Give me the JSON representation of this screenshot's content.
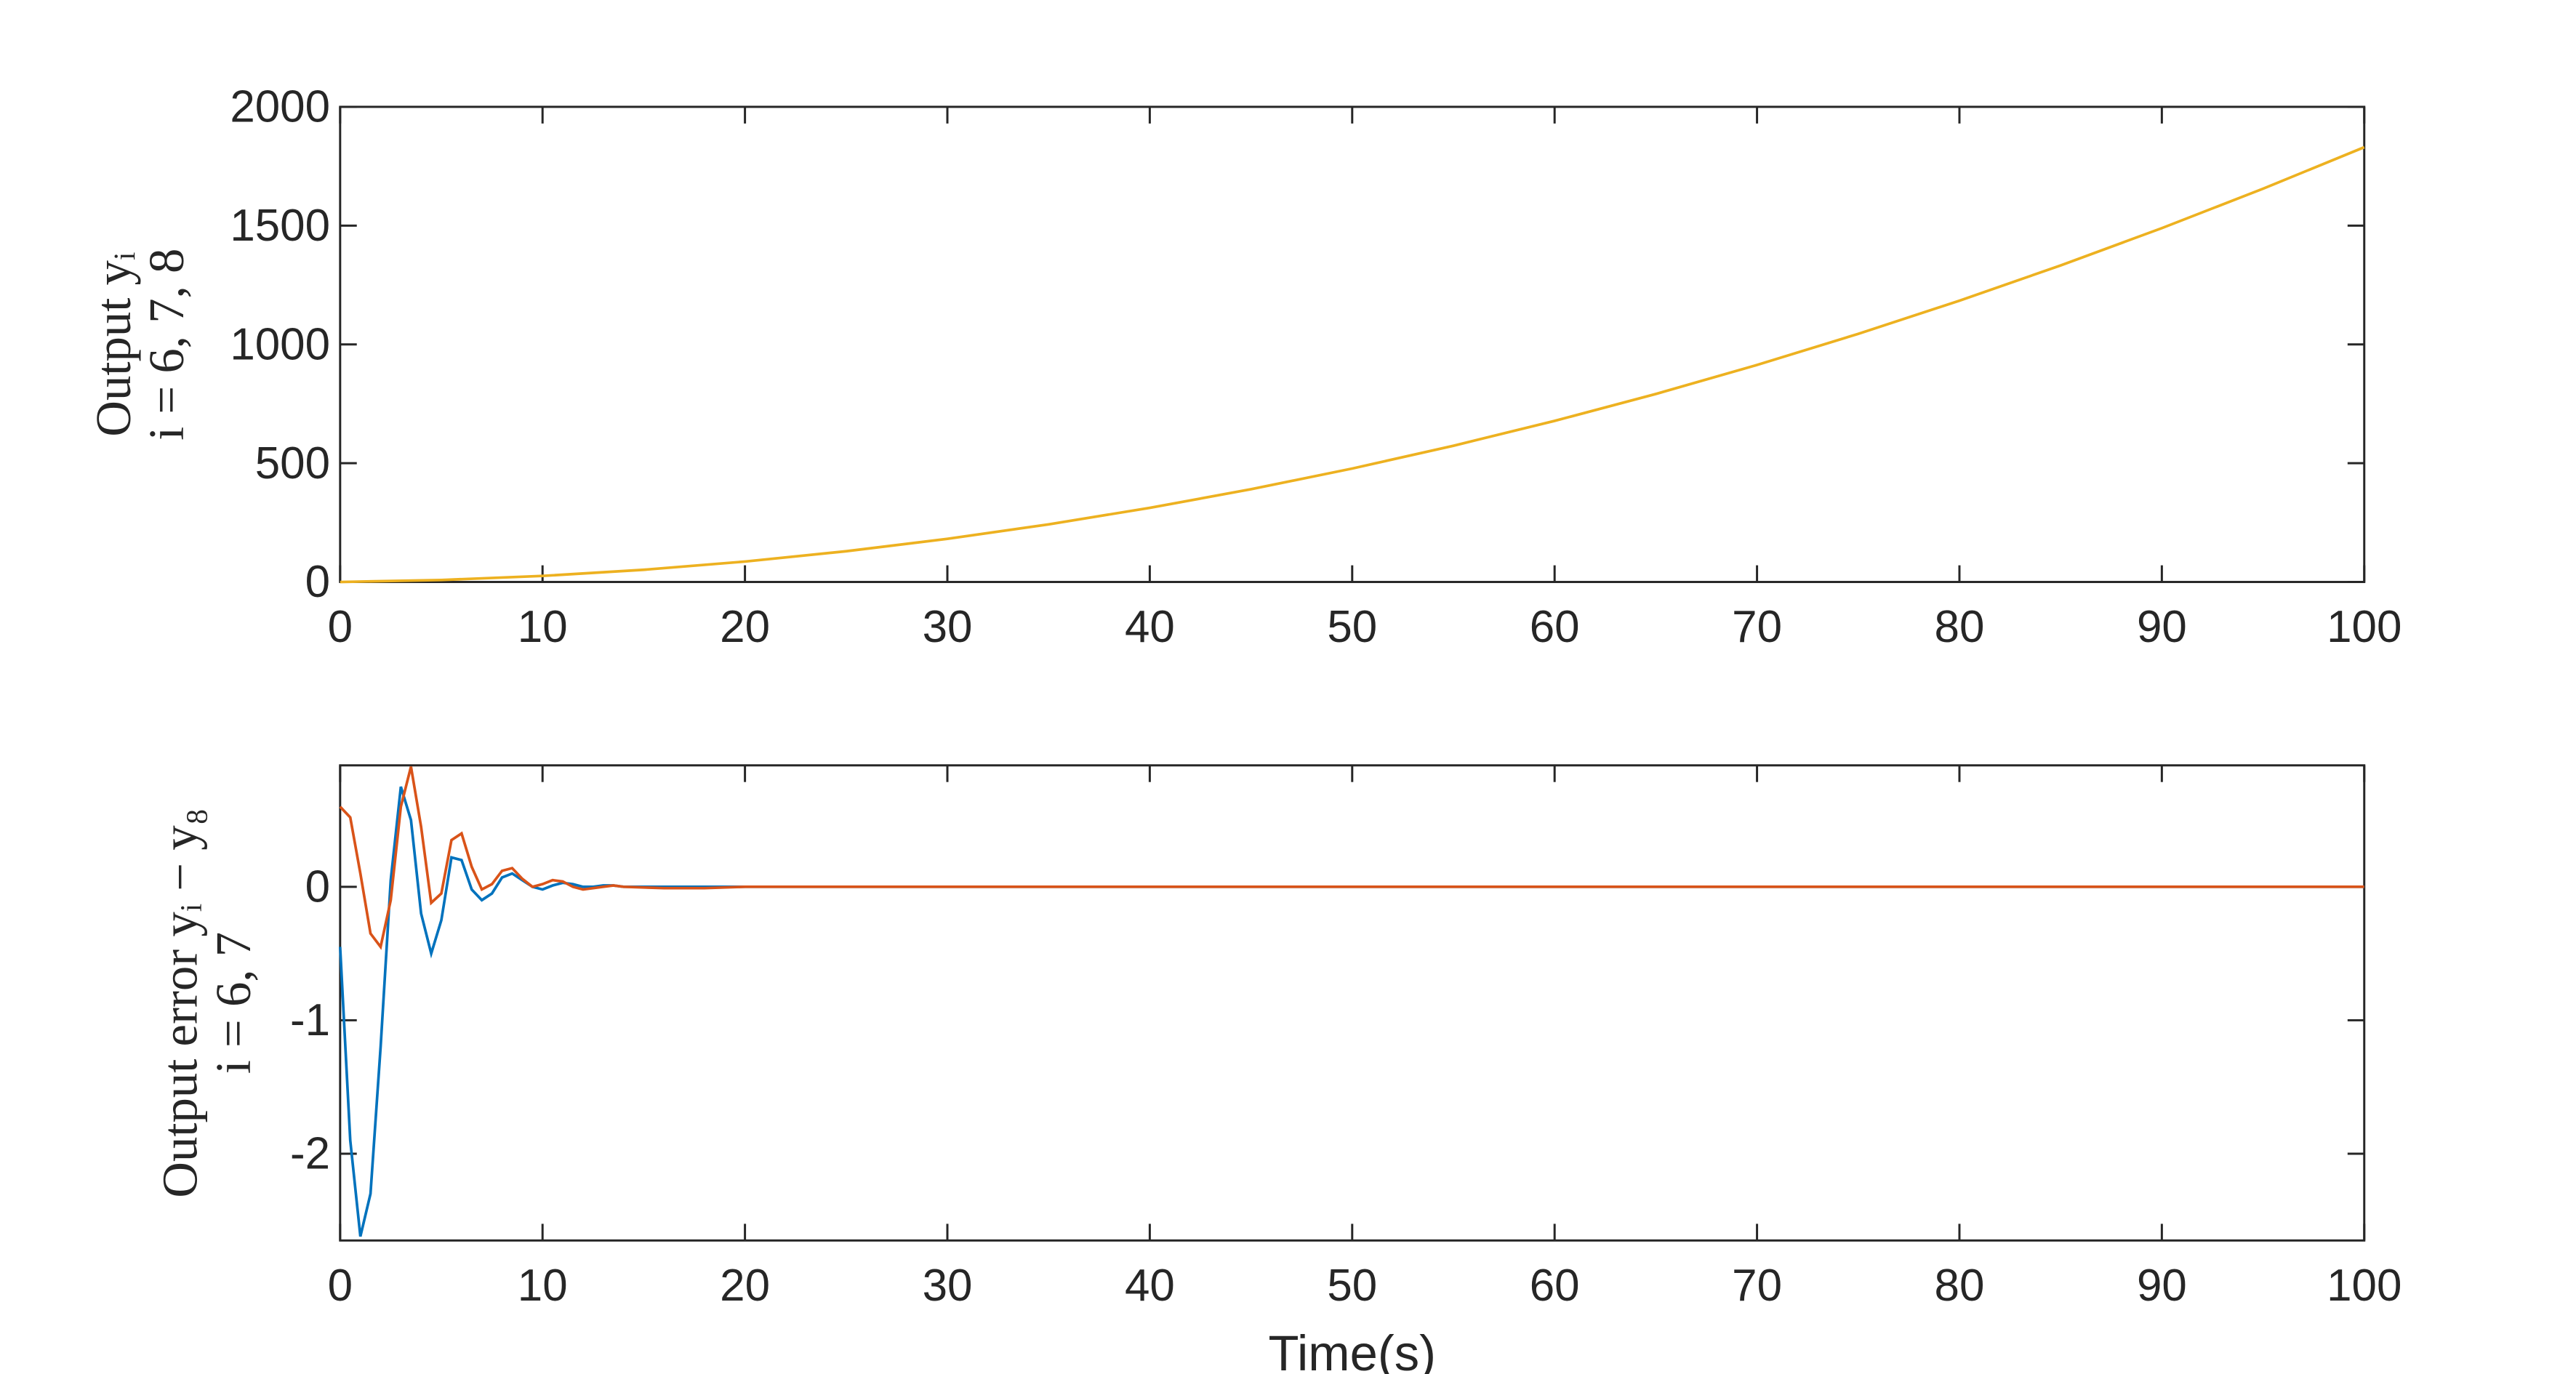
{
  "chart_data": [
    {
      "type": "line",
      "ylabel": [
        "Output yᵢ",
        "i = 6, 7, 8"
      ],
      "x": [
        0,
        5,
        10,
        15,
        20,
        25,
        30,
        35,
        40,
        45,
        50,
        55,
        60,
        65,
        70,
        75,
        80,
        85,
        90,
        95,
        100
      ],
      "values": [
        0,
        8.4,
        25.5,
        51.4,
        86,
        129.4,
        181.5,
        242.4,
        312,
        390.4,
        477.5,
        573.4,
        678,
        791.4,
        913.5,
        1044.4,
        1184,
        1332.4,
        1489.5,
        1655.4,
        1830
      ],
      "color": "#edb120",
      "xlim": [
        0,
        100
      ],
      "xticks": [
        0,
        10,
        20,
        30,
        40,
        50,
        60,
        70,
        80,
        90,
        100
      ],
      "ylim": [
        0,
        2000
      ],
      "yticks": [
        0,
        500,
        1000,
        1500,
        2000
      ]
    },
    {
      "type": "line",
      "ylabel": [
        "Output error yᵢ − y₈",
        "i = 6, 7"
      ],
      "xlabel": "Time(s)",
      "x": [
        0,
        0.5,
        1,
        1.5,
        2,
        2.5,
        3,
        3.5,
        4,
        4.5,
        5,
        5.5,
        6,
        6.5,
        7,
        7.5,
        8,
        8.5,
        9,
        9.5,
        10,
        10.5,
        11,
        11.5,
        12,
        12.5,
        13,
        13.5,
        14,
        16,
        18,
        20,
        30,
        40,
        50,
        60,
        70,
        80,
        90,
        100
      ],
      "series": [
        {
          "color": "#0072bd",
          "values": [
            -0.45,
            -1.9,
            -2.62,
            -2.3,
            -1.2,
            0.05,
            0.75,
            0.5,
            -0.2,
            -0.5,
            -0.25,
            0.22,
            0.2,
            -0.02,
            -0.1,
            -0.05,
            0.07,
            0.1,
            0.05,
            0,
            -0.02,
            0.01,
            0.03,
            0.02,
            0,
            0,
            0.01,
            0.01,
            0,
            0,
            0,
            0,
            0,
            0,
            0,
            0,
            0,
            0,
            0,
            0
          ]
        },
        {
          "color": "#d95319",
          "values": [
            0.6,
            0.52,
            0.1,
            -0.35,
            -0.45,
            -0.1,
            0.6,
            0.9,
            0.45,
            -0.12,
            -0.05,
            0.35,
            0.4,
            0.15,
            -0.02,
            0.02,
            0.12,
            0.14,
            0.06,
            0,
            0.02,
            0.05,
            0.04,
            0,
            -0.02,
            -0.01,
            0,
            0.01,
            0,
            -0.01,
            -0.01,
            0,
            0,
            0,
            0,
            0,
            0,
            0,
            0,
            0
          ]
        }
      ],
      "xlim": [
        0,
        100
      ],
      "xticks": [
        0,
        10,
        20,
        30,
        40,
        50,
        60,
        70,
        80,
        90,
        100
      ],
      "ylim": [
        -2.65,
        0.91
      ],
      "yticks": [
        -2,
        -1,
        0
      ]
    }
  ]
}
